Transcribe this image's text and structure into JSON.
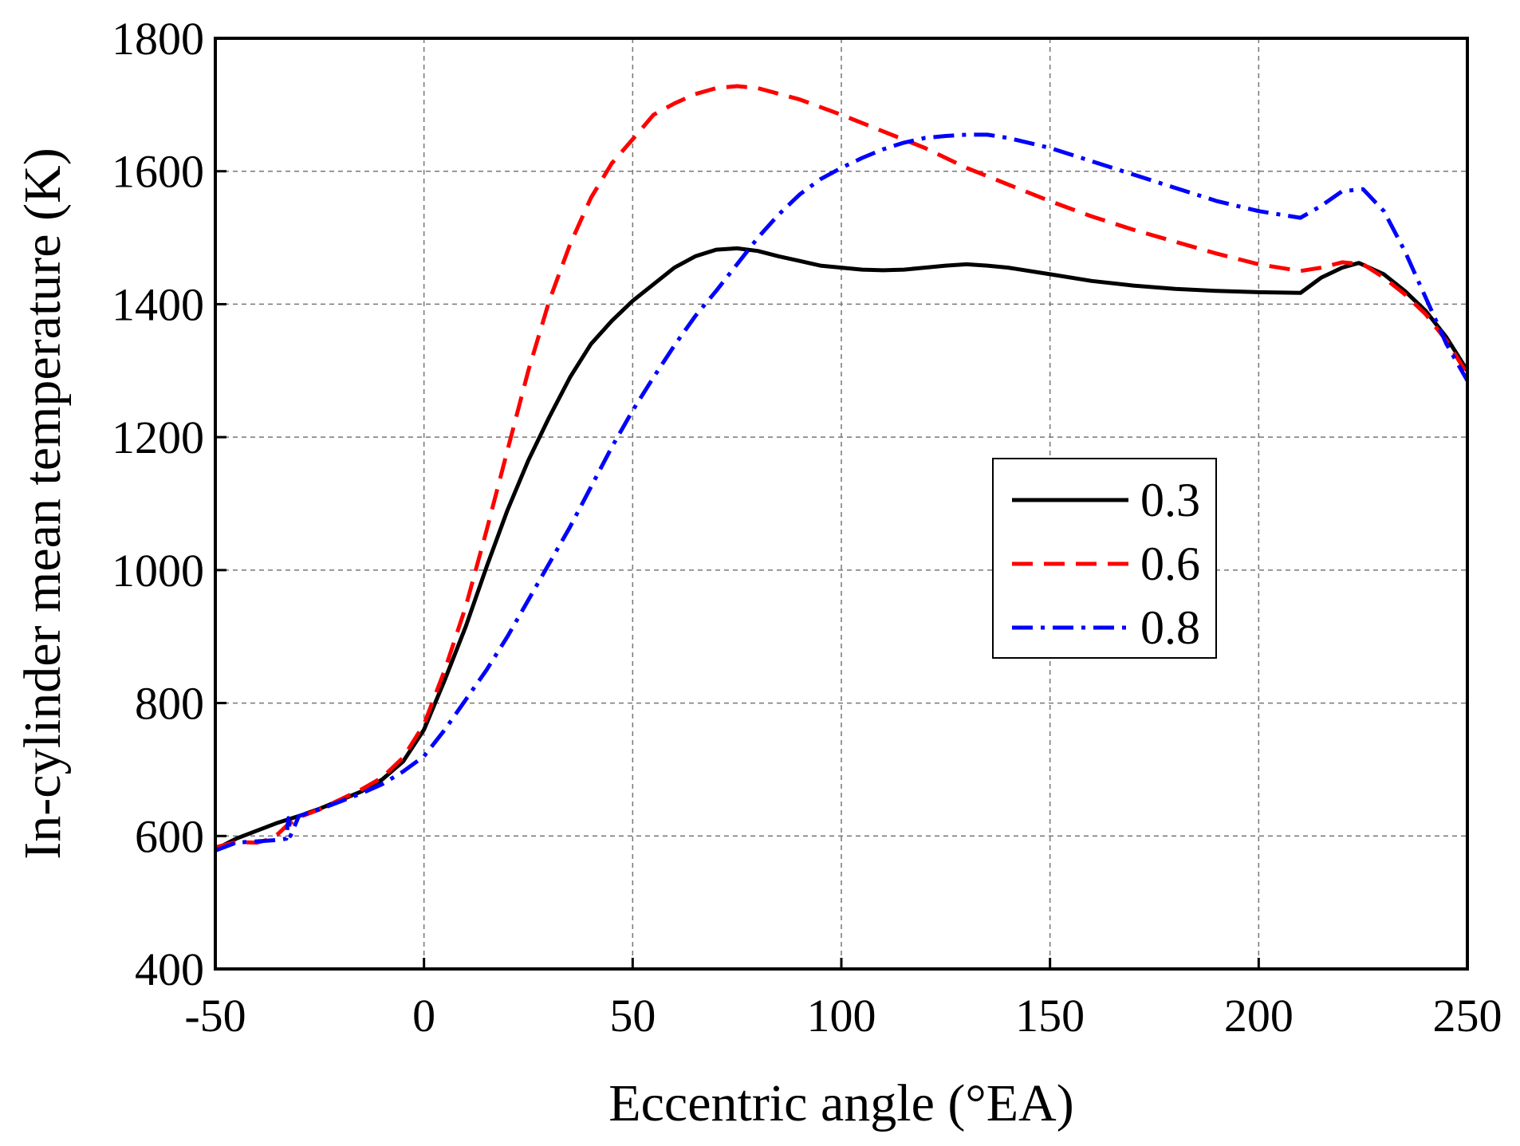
{
  "chart_data": {
    "type": "line",
    "title": "",
    "xlabel": "Eccentric angle (°EA)",
    "ylabel": "In-cylinder mean temperature (K)",
    "xlim": [
      -50,
      250
    ],
    "ylim": [
      400,
      1800
    ],
    "xticks": [
      -50,
      0,
      50,
      100,
      150,
      200,
      250
    ],
    "yticks": [
      400,
      600,
      800,
      1000,
      1200,
      1400,
      1600,
      1800
    ],
    "grid": true,
    "legend_position": "center-right",
    "series": [
      {
        "name": "0.3",
        "color": "#000000",
        "dash": "solid",
        "x": [
          -50,
          -45,
          -40,
          -35,
          -30,
          -25,
          -20,
          -15,
          -10,
          -5,
          0,
          5,
          10,
          15,
          20,
          25,
          30,
          35,
          40,
          45,
          50,
          55,
          60,
          65,
          70,
          75,
          80,
          85,
          90,
          95,
          100,
          105,
          110,
          115,
          120,
          125,
          130,
          135,
          140,
          150,
          160,
          170,
          180,
          190,
          200,
          210,
          215,
          220,
          224,
          230,
          235,
          240,
          245,
          250
        ],
        "y": [
          580,
          596,
          608,
          620,
          630,
          641,
          654,
          667,
          685,
          712,
          760,
          835,
          915,
          1005,
          1090,
          1165,
          1230,
          1290,
          1340,
          1375,
          1405,
          1430,
          1455,
          1472,
          1482,
          1484,
          1480,
          1472,
          1465,
          1458,
          1455,
          1452,
          1451,
          1452,
          1455,
          1458,
          1460,
          1458,
          1455,
          1445,
          1435,
          1428,
          1423,
          1420,
          1418,
          1417,
          1440,
          1455,
          1462,
          1445,
          1420,
          1390,
          1350,
          1300
        ]
      },
      {
        "name": "0.6",
        "color": "#ff0000",
        "dash": "dashed",
        "x": [
          -50,
          -45,
          -40,
          -37,
          -35,
          -33,
          -30,
          -25,
          -20,
          -15,
          -10,
          -5,
          0,
          5,
          10,
          15,
          20,
          25,
          30,
          35,
          40,
          45,
          50,
          55,
          60,
          65,
          70,
          75,
          80,
          90,
          100,
          110,
          120,
          130,
          140,
          150,
          160,
          170,
          180,
          190,
          200,
          210,
          215,
          220,
          225,
          230,
          235,
          240,
          245,
          250
        ],
        "y": [
          583,
          591,
          590,
          595,
          603,
          615,
          628,
          640,
          655,
          670,
          688,
          718,
          768,
          850,
          945,
          1060,
          1180,
          1300,
          1405,
          1490,
          1560,
          1612,
          1648,
          1685,
          1702,
          1716,
          1725,
          1728,
          1725,
          1708,
          1685,
          1660,
          1635,
          1605,
          1580,
          1555,
          1532,
          1512,
          1494,
          1476,
          1460,
          1450,
          1455,
          1463,
          1460,
          1440,
          1415,
          1385,
          1345,
          1295
        ]
      },
      {
        "name": "0.8",
        "color": "#0000ff",
        "dash": "dashdot",
        "x": [
          -50,
          -45,
          -40,
          -35,
          -33,
          -32.5,
          -32,
          -30,
          -25,
          -20,
          -15,
          -10,
          -5,
          0,
          5,
          10,
          15,
          20,
          25,
          30,
          35,
          40,
          45,
          50,
          55,
          60,
          65,
          70,
          75,
          80,
          85,
          90,
          95,
          100,
          105,
          110,
          115,
          120,
          125,
          130,
          135,
          140,
          150,
          160,
          170,
          180,
          190,
          200,
          210,
          215,
          220,
          225,
          230,
          235,
          240,
          245,
          250
        ],
        "y": [
          578,
          590,
          592,
          594,
          596,
          627,
          600,
          630,
          640,
          652,
          664,
          678,
          697,
          720,
          760,
          805,
          850,
          900,
          955,
          1010,
          1065,
          1125,
          1185,
          1240,
          1290,
          1338,
          1382,
          1420,
          1460,
          1500,
          1535,
          1565,
          1588,
          1605,
          1620,
          1633,
          1643,
          1650,
          1653,
          1655,
          1655,
          1650,
          1635,
          1615,
          1595,
          1575,
          1555,
          1540,
          1530,
          1548,
          1570,
          1573,
          1540,
          1480,
          1410,
          1340,
          1285
        ]
      }
    ]
  }
}
